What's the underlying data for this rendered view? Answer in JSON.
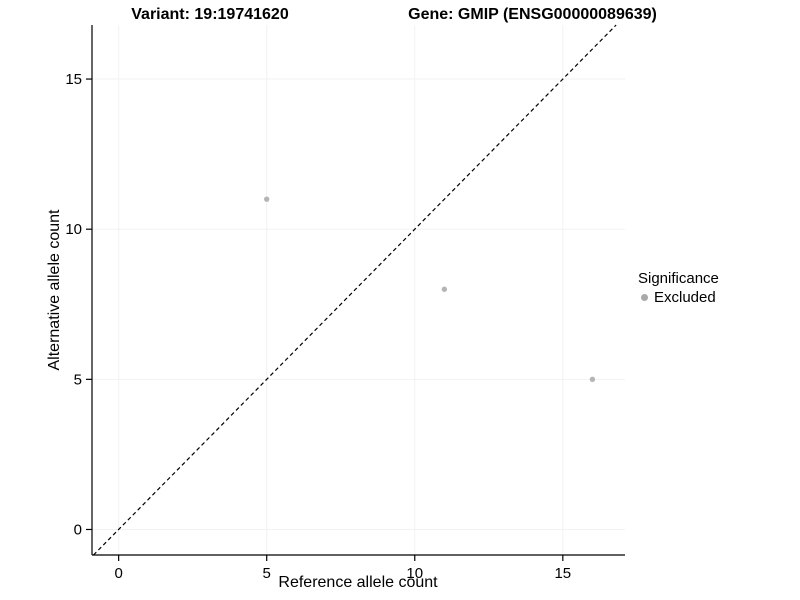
{
  "chart_data": {
    "type": "scatter",
    "title_left": "Variant: 19:19741620",
    "title_right": "Gene: GMIP (ENSG00000089639)",
    "xlabel": "Reference allele count",
    "ylabel": "Alternative allele count",
    "xlim": [
      -0.9,
      17.1
    ],
    "ylim": [
      -0.85,
      16.8
    ],
    "xticks": [
      0,
      5,
      10,
      15
    ],
    "yticks": [
      0,
      5,
      10,
      15
    ],
    "grid": "faint major gridlines",
    "points": [
      {
        "x": 5,
        "y": 11,
        "series": "Excluded"
      },
      {
        "x": 11,
        "y": 8,
        "series": "Excluded"
      },
      {
        "x": 16,
        "y": 5,
        "series": "Excluded"
      }
    ],
    "identity_line": {
      "equation": "y = x",
      "style": "dashed",
      "color": "#000000"
    },
    "point_color": "#b5b5b5",
    "gridline_color": "#f2f2f2",
    "axis_color": "#000000",
    "legend": {
      "title": "Significance",
      "position": "right",
      "entries": [
        {
          "label": "Excluded",
          "color": "#a9a9a9"
        }
      ]
    }
  }
}
